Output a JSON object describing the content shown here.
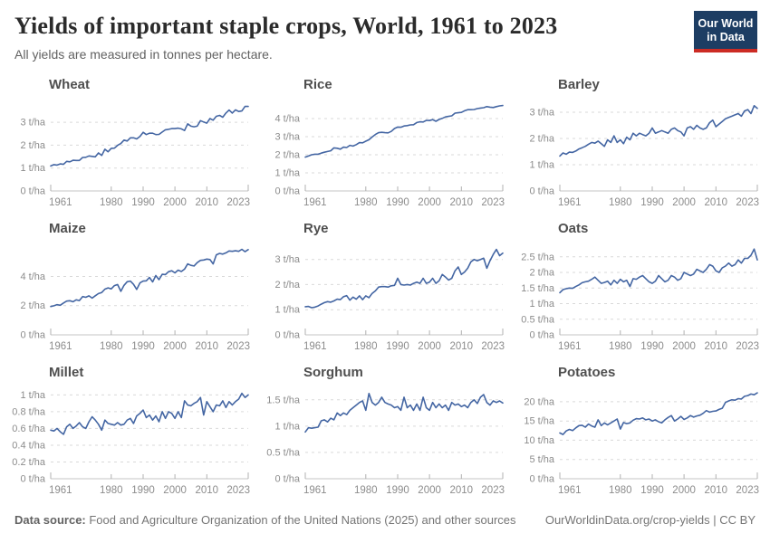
{
  "header": {
    "title": "Yields of important staple crops, World, 1961 to 2023",
    "subtitle": "All yields are measured in tonnes per hectare.",
    "logo": {
      "line1": "Our World",
      "line2": "in Data"
    }
  },
  "footer": {
    "source_label": "Data source:",
    "source_text": " Food and Agriculture Organization of the United Nations (2025) and other sources",
    "citation": "OurWorldinData.org/crop-yields | CC BY"
  },
  "colors": {
    "line": "#4466a3",
    "grid": "#d9d9d9",
    "axis": "#c4c4c4",
    "tick": "#b0b0b0",
    "tick_label": "#8c8c8c",
    "logo_bg": "#1d3d63",
    "logo_accent": "#cc2b24"
  },
  "chart_data": [
    {
      "type": "line",
      "title": "Wheat",
      "unit": "t/ha",
      "x_start": 1961,
      "x_end": 2023,
      "xticks": [
        1961,
        1980,
        1990,
        2000,
        2010,
        2023
      ],
      "yticks": [
        0,
        1,
        2,
        3
      ],
      "ylim": [
        0,
        3.95
      ],
      "values": [
        1.09,
        1.15,
        1.13,
        1.18,
        1.16,
        1.29,
        1.27,
        1.34,
        1.33,
        1.33,
        1.46,
        1.47,
        1.53,
        1.51,
        1.49,
        1.66,
        1.55,
        1.82,
        1.71,
        1.86,
        1.87,
        1.99,
        2.07,
        2.22,
        2.18,
        2.32,
        2.32,
        2.27,
        2.38,
        2.56,
        2.46,
        2.52,
        2.52,
        2.46,
        2.47,
        2.57,
        2.67,
        2.69,
        2.72,
        2.72,
        2.74,
        2.71,
        2.64,
        2.93,
        2.83,
        2.8,
        2.83,
        3.07,
        3.01,
        2.96,
        3.16,
        3.09,
        3.26,
        3.3,
        3.22,
        3.4,
        3.53,
        3.4,
        3.54,
        3.47,
        3.49,
        3.69,
        3.69
      ]
    },
    {
      "type": "line",
      "title": "Rice",
      "unit": "t/ha",
      "x_start": 1961,
      "x_end": 2023,
      "xticks": [
        1961,
        1980,
        1990,
        2000,
        2010,
        2023
      ],
      "yticks": [
        0,
        1,
        2,
        3,
        4
      ],
      "ylim": [
        0,
        5.0
      ],
      "values": [
        1.87,
        1.93,
        2.0,
        2.03,
        2.03,
        2.09,
        2.14,
        2.18,
        2.22,
        2.38,
        2.36,
        2.31,
        2.42,
        2.4,
        2.52,
        2.48,
        2.56,
        2.67,
        2.66,
        2.75,
        2.83,
        2.98,
        3.12,
        3.22,
        3.24,
        3.22,
        3.21,
        3.29,
        3.45,
        3.53,
        3.52,
        3.59,
        3.61,
        3.65,
        3.66,
        3.78,
        3.82,
        3.81,
        3.9,
        3.89,
        3.94,
        3.85,
        3.95,
        4.01,
        4.09,
        4.12,
        4.15,
        4.3,
        4.32,
        4.34,
        4.43,
        4.49,
        4.49,
        4.5,
        4.55,
        4.58,
        4.6,
        4.66,
        4.63,
        4.61,
        4.66,
        4.7,
        4.72
      ]
    },
    {
      "type": "line",
      "title": "Barley",
      "unit": "t/ha",
      "x_start": 1961,
      "x_end": 2023,
      "xticks": [
        1961,
        1980,
        1990,
        2000,
        2010,
        2023
      ],
      "yticks": [
        0,
        1,
        2,
        3
      ],
      "ylim": [
        0,
        3.45
      ],
      "values": [
        1.33,
        1.45,
        1.4,
        1.48,
        1.47,
        1.52,
        1.6,
        1.65,
        1.7,
        1.78,
        1.85,
        1.82,
        1.9,
        1.8,
        1.7,
        1.95,
        1.85,
        2.1,
        1.85,
        1.95,
        1.8,
        2.05,
        1.95,
        2.2,
        2.1,
        2.2,
        2.15,
        2.1,
        2.2,
        2.4,
        2.2,
        2.25,
        2.3,
        2.25,
        2.2,
        2.35,
        2.4,
        2.3,
        2.25,
        2.1,
        2.4,
        2.45,
        2.35,
        2.5,
        2.4,
        2.35,
        2.4,
        2.6,
        2.7,
        2.45,
        2.55,
        2.65,
        2.75,
        2.8,
        2.85,
        2.9,
        2.95,
        2.85,
        3.05,
        3.1,
        2.95,
        3.25,
        3.15
      ]
    },
    {
      "type": "line",
      "title": "Maize",
      "unit": "t/ha",
      "x_start": 1961,
      "x_end": 2023,
      "xticks": [
        1961,
        1980,
        1990,
        2000,
        2010,
        2023
      ],
      "yticks": [
        0,
        2,
        4
      ],
      "ylim": [
        0,
        6.2
      ],
      "values": [
        1.94,
        1.99,
        2.07,
        2.03,
        2.18,
        2.31,
        2.34,
        2.27,
        2.4,
        2.35,
        2.62,
        2.57,
        2.67,
        2.52,
        2.68,
        2.83,
        2.9,
        3.13,
        3.22,
        3.15,
        3.37,
        3.45,
        2.98,
        3.39,
        3.64,
        3.68,
        3.46,
        3.11,
        3.56,
        3.68,
        3.7,
        3.93,
        3.63,
        4.06,
        3.78,
        4.15,
        4.13,
        4.33,
        4.39,
        4.25,
        4.43,
        4.34,
        4.5,
        4.86,
        4.76,
        4.72,
        4.95,
        5.1,
        5.13,
        5.19,
        5.16,
        4.86,
        5.48,
        5.58,
        5.53,
        5.62,
        5.75,
        5.72,
        5.76,
        5.72,
        5.86,
        5.7,
        5.84
      ]
    },
    {
      "type": "line",
      "title": "Rye",
      "unit": "t/ha",
      "x_start": 1961,
      "x_end": 2023,
      "xticks": [
        1961,
        1980,
        1990,
        2000,
        2010,
        2023
      ],
      "yticks": [
        0,
        1,
        2,
        3
      ],
      "ylim": [
        0,
        3.6
      ],
      "values": [
        1.12,
        1.13,
        1.08,
        1.1,
        1.15,
        1.22,
        1.28,
        1.32,
        1.3,
        1.35,
        1.42,
        1.4,
        1.52,
        1.56,
        1.38,
        1.5,
        1.42,
        1.55,
        1.4,
        1.55,
        1.48,
        1.65,
        1.75,
        1.9,
        1.92,
        1.92,
        1.9,
        1.95,
        1.97,
        2.25,
        2.0,
        1.98,
        2.0,
        1.98,
        2.05,
        2.1,
        2.05,
        2.25,
        2.05,
        2.1,
        2.25,
        2.05,
        2.15,
        2.4,
        2.3,
        2.18,
        2.25,
        2.55,
        2.7,
        2.4,
        2.5,
        2.65,
        2.9,
        3.0,
        2.95,
        3.0,
        3.05,
        2.65,
        2.95,
        3.2,
        3.4,
        3.15,
        3.25
      ]
    },
    {
      "type": "line",
      "title": "Oats",
      "unit": "t/ha",
      "x_start": 1961,
      "x_end": 2023,
      "xticks": [
        1961,
        1980,
        1990,
        2000,
        2010,
        2023
      ],
      "yticks": [
        0,
        0.5,
        1,
        1.5,
        2,
        2.5
      ],
      "ylim": [
        0,
        2.9
      ],
      "values": [
        1.35,
        1.45,
        1.48,
        1.5,
        1.49,
        1.55,
        1.6,
        1.67,
        1.7,
        1.72,
        1.78,
        1.85,
        1.75,
        1.65,
        1.68,
        1.72,
        1.6,
        1.75,
        1.65,
        1.78,
        1.7,
        1.75,
        1.55,
        1.8,
        1.78,
        1.85,
        1.9,
        1.8,
        1.7,
        1.65,
        1.72,
        1.9,
        1.8,
        1.7,
        1.75,
        1.9,
        1.85,
        1.75,
        1.8,
        2.0,
        1.95,
        1.9,
        1.95,
        2.1,
        2.05,
        2.0,
        2.1,
        2.25,
        2.2,
        2.05,
        2.0,
        2.15,
        2.2,
        2.3,
        2.2,
        2.25,
        2.4,
        2.3,
        2.45,
        2.45,
        2.55,
        2.75,
        2.4
      ]
    },
    {
      "type": "line",
      "title": "Millet",
      "unit": "t/ha",
      "x_start": 1961,
      "x_end": 2023,
      "xticks": [
        1961,
        1980,
        1990,
        2000,
        2010,
        2023
      ],
      "yticks": [
        0,
        0.2,
        0.4,
        0.6,
        0.8,
        1
      ],
      "ylim": [
        0,
        1.08
      ],
      "values": [
        0.58,
        0.57,
        0.6,
        0.56,
        0.53,
        0.62,
        0.65,
        0.6,
        0.63,
        0.67,
        0.62,
        0.6,
        0.68,
        0.74,
        0.7,
        0.65,
        0.58,
        0.7,
        0.66,
        0.65,
        0.64,
        0.67,
        0.64,
        0.65,
        0.7,
        0.72,
        0.66,
        0.75,
        0.78,
        0.82,
        0.73,
        0.76,
        0.7,
        0.75,
        0.68,
        0.8,
        0.72,
        0.8,
        0.78,
        0.72,
        0.8,
        0.73,
        0.93,
        0.88,
        0.87,
        0.9,
        0.92,
        0.97,
        0.76,
        0.92,
        0.86,
        0.8,
        0.88,
        0.87,
        0.93,
        0.85,
        0.92,
        0.88,
        0.92,
        0.95,
        1.02,
        0.97,
        1.0
      ]
    },
    {
      "type": "line",
      "title": "Sorghum",
      "unit": "t/ha",
      "x_start": 1961,
      "x_end": 2023,
      "xticks": [
        1961,
        1980,
        1990,
        2000,
        2010,
        2023
      ],
      "yticks": [
        0,
        0.5,
        1,
        1.5
      ],
      "ylim": [
        0,
        1.72
      ],
      "values": [
        0.89,
        0.97,
        0.96,
        0.97,
        0.98,
        1.1,
        1.12,
        1.08,
        1.15,
        1.12,
        1.25,
        1.2,
        1.25,
        1.22,
        1.3,
        1.35,
        1.4,
        1.45,
        1.48,
        1.3,
        1.62,
        1.45,
        1.4,
        1.45,
        1.55,
        1.45,
        1.42,
        1.4,
        1.35,
        1.37,
        1.3,
        1.55,
        1.35,
        1.4,
        1.3,
        1.42,
        1.3,
        1.55,
        1.35,
        1.3,
        1.45,
        1.35,
        1.42,
        1.35,
        1.4,
        1.3,
        1.45,
        1.4,
        1.42,
        1.37,
        1.4,
        1.35,
        1.45,
        1.5,
        1.43,
        1.55,
        1.6,
        1.45,
        1.4,
        1.48,
        1.45,
        1.48,
        1.44
      ]
    },
    {
      "type": "line",
      "title": "Potatoes",
      "unit": "t/ha",
      "x_start": 1961,
      "x_end": 2023,
      "xticks": [
        1961,
        1980,
        1990,
        2000,
        2010,
        2023
      ],
      "yticks": [
        0,
        5,
        10,
        15,
        20
      ],
      "ylim": [
        0,
        23.5
      ],
      "values": [
        11.9,
        11.5,
        12.4,
        12.8,
        12.5,
        13.2,
        13.8,
        13.9,
        13.4,
        14.2,
        13.7,
        13.4,
        15.3,
        13.8,
        14.5,
        14.0,
        14.5,
        15.0,
        15.5,
        12.9,
        14.6,
        14.3,
        14.5,
        15.2,
        15.6,
        15.5,
        15.8,
        15.3,
        15.5,
        15.0,
        15.3,
        14.8,
        14.5,
        15.3,
        15.9,
        16.4,
        15.0,
        15.5,
        16.2,
        15.4,
        15.8,
        16.4,
        16.0,
        16.3,
        16.5,
        17.0,
        17.7,
        17.3,
        17.5,
        17.6,
        18.0,
        18.3,
        19.8,
        20.2,
        20.5,
        20.4,
        20.8,
        20.7,
        21.4,
        21.6,
        22.0,
        21.8,
        22.3
      ]
    }
  ]
}
